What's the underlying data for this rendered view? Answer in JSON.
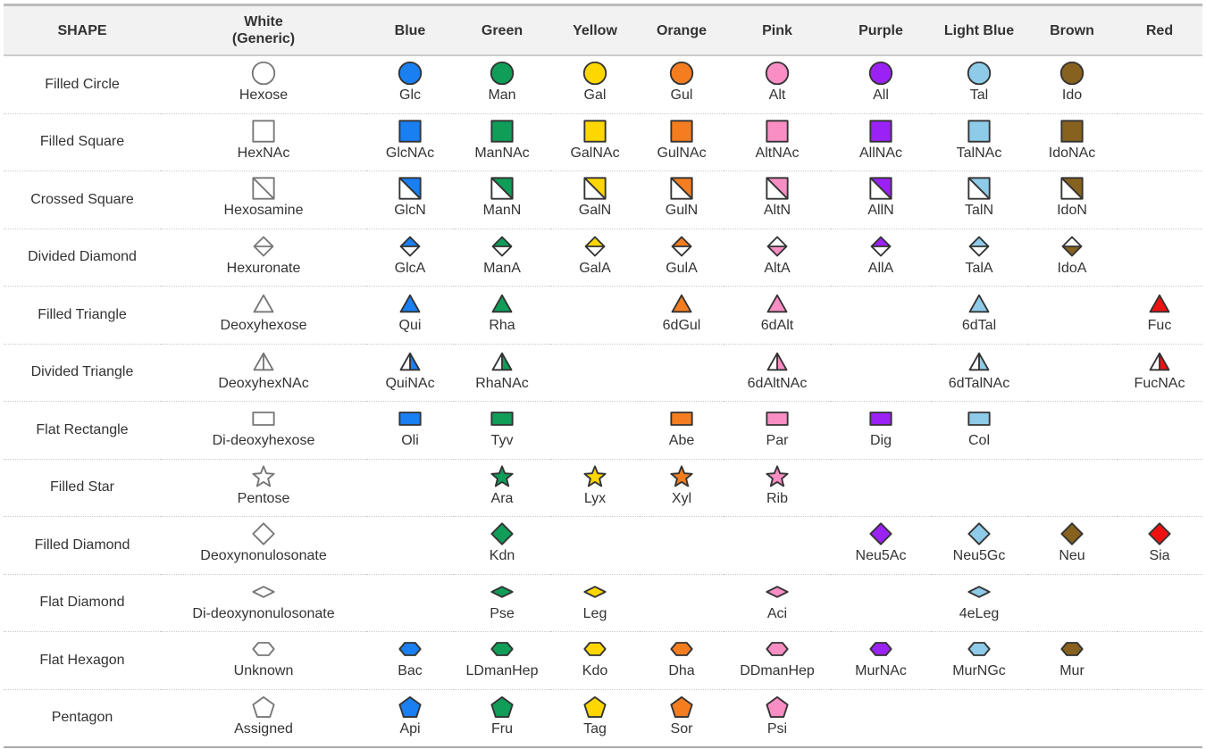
{
  "header": {
    "shape": "SHAPE",
    "columns": [
      "White\n(Generic)",
      "Blue",
      "Green",
      "Yellow",
      "Orange",
      "Pink",
      "Purple",
      "Light Blue",
      "Brown",
      "Red"
    ]
  },
  "colors": [
    "#ffffff",
    "#1a7ff0",
    "#0f9d58",
    "#ffd700",
    "#f47d20",
    "#f98ec4",
    "#9a22f5",
    "#8ecbe9",
    "#87611e",
    "#ee1111"
  ],
  "rows": [
    {
      "label": "Filled Circle",
      "shape": "circle",
      "cells": [
        "Hexose",
        "Glc",
        "Man",
        "Gal",
        "Gul",
        "Alt",
        "All",
        "Tal",
        "Ido",
        null
      ]
    },
    {
      "label": "Filled Square",
      "shape": "square",
      "cells": [
        "HexNAc",
        "GlcNAc",
        "ManNAc",
        "GalNAc",
        "GulNAc",
        "AltNAc",
        "AllNAc",
        "TalNAc",
        "IdoNAc",
        null
      ]
    },
    {
      "label": "Crossed Square",
      "shape": "crossed-square",
      "cells": [
        "Hexosamine",
        "GlcN",
        "ManN",
        "GalN",
        "GulN",
        "AltN",
        "AllN",
        "TalN",
        "IdoN",
        null
      ]
    },
    {
      "label": "Divided Diamond",
      "shape": "divided-diamond",
      "inverted": [
        "AltA",
        "IdoA"
      ],
      "cells": [
        "Hexuronate",
        "GlcA",
        "ManA",
        "GalA",
        "GulA",
        "AltA",
        "AllA",
        "TalA",
        "IdoA",
        null
      ]
    },
    {
      "label": "Filled Triangle",
      "shape": "triangle",
      "cells": [
        "Deoxyhexose",
        "Qui",
        "Rha",
        null,
        "6dGul",
        "6dAlt",
        null,
        "6dTal",
        null,
        "Fuc"
      ]
    },
    {
      "label": "Divided Triangle",
      "shape": "divided-triangle",
      "cells": [
        "DeoxyhexNAc",
        "QuiNAc",
        "RhaNAc",
        null,
        null,
        "6dAltNAc",
        null,
        "6dTalNAc",
        null,
        "FucNAc"
      ]
    },
    {
      "label": "Flat Rectangle",
      "shape": "flat-rectangle",
      "cells": [
        "Di-deoxyhexose",
        "Oli",
        "Tyv",
        null,
        "Abe",
        "Par",
        "Dig",
        "Col",
        null,
        null
      ]
    },
    {
      "label": "Filled Star",
      "shape": "star",
      "cells": [
        "Pentose",
        null,
        "Ara",
        "Lyx",
        "Xyl",
        "Rib",
        null,
        null,
        null,
        null
      ]
    },
    {
      "label": "Filled Diamond",
      "shape": "diamond",
      "cells": [
        "Deoxynonulosonate",
        null,
        "Kdn",
        null,
        null,
        null,
        "Neu5Ac",
        "Neu5Gc",
        "Neu",
        "Sia"
      ]
    },
    {
      "label": "Flat Diamond",
      "shape": "flat-diamond",
      "cells": [
        "Di-deoxynonulosonate",
        null,
        "Pse",
        "Leg",
        null,
        "Aci",
        null,
        "4eLeg",
        null,
        null
      ]
    },
    {
      "label": "Flat Hexagon",
      "shape": "flat-hexagon",
      "cells": [
        "Unknown",
        "Bac",
        "LDmanHep",
        "Kdo",
        "Dha",
        "DDmanHep",
        "MurNAc",
        "MurNGc",
        "Mur",
        null
      ]
    },
    {
      "label": "Pentagon",
      "shape": "pentagon",
      "cells": [
        "Assigned",
        "Api",
        "Fru",
        "Tag",
        "Sor",
        "Psi",
        null,
        null,
        null,
        null
      ]
    }
  ]
}
